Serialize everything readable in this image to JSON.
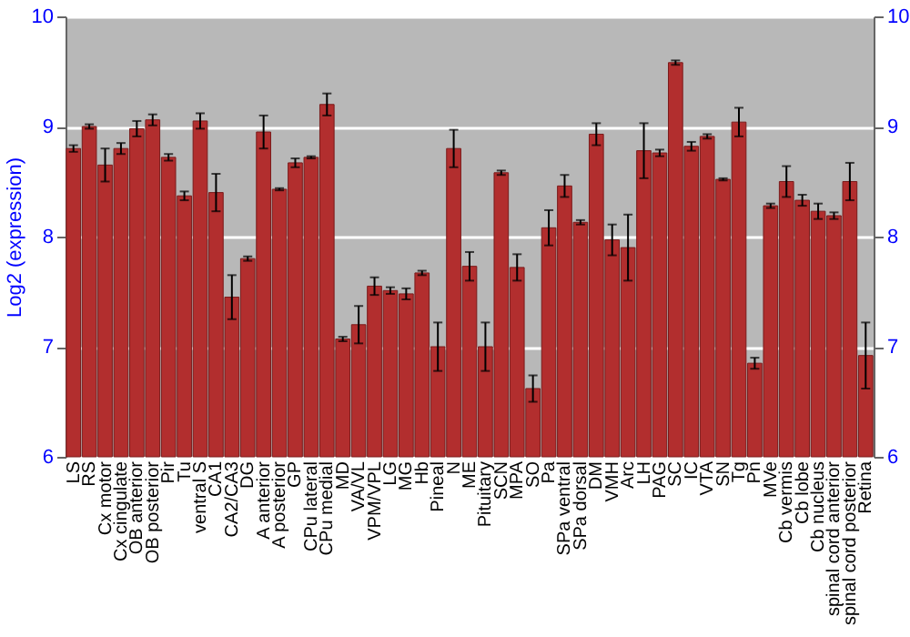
{
  "chart_data": {
    "type": "bar",
    "ylabel": "Log2 (expression)",
    "categories": [
      "LS",
      "RS",
      "Cx motor",
      "Cx cingulate",
      "OB anterior",
      "OB posterior",
      "Pir",
      "Tu",
      "ventral S",
      "CA1",
      "CA2/CA3",
      "DG",
      "A anterior",
      "A posterior",
      "GP",
      "CPu lateral",
      "CPu medial",
      "MD",
      "VA/VL",
      "VPM/VPL",
      "LG",
      "MG",
      "Hb",
      "Pineal",
      "N",
      "ME",
      "Pituitary",
      "SCN",
      "MPA",
      "SO",
      "Pa",
      "SPa ventral",
      "SPa dorsal",
      "DM",
      "VMH",
      "Arc",
      "LH",
      "PAG",
      "SC",
      "IC",
      "VTA",
      "SN",
      "Tg",
      "Pn",
      "MVe",
      "Cb vermis",
      "Cb lobe",
      "Cb nucleus",
      "spinal cord anterior",
      "spinal cord posterior",
      "Retina"
    ],
    "series": [
      {
        "color": "#b22e2e",
        "values": [
          8.8,
          9.0,
          8.65,
          8.8,
          8.98,
          9.06,
          8.72,
          8.37,
          9.05,
          8.4,
          7.45,
          7.8,
          8.95,
          8.43,
          8.67,
          8.72,
          9.2,
          7.07,
          7.2,
          7.55,
          7.51,
          7.48,
          7.67,
          7.0,
          8.8,
          7.73,
          7.0,
          8.58,
          7.72,
          6.62,
          8.08,
          8.46,
          8.13,
          8.93,
          7.97,
          7.9,
          8.78,
          8.76,
          9.58,
          8.82,
          8.91,
          8.52,
          9.04,
          6.85,
          8.28,
          8.5,
          8.33,
          8.23,
          8.19,
          8.5,
          6.92
        ],
        "errors": [
          0.03,
          0.02,
          0.15,
          0.05,
          0.07,
          0.05,
          0.03,
          0.04,
          0.07,
          0.17,
          0.2,
          0.02,
          0.15,
          0.01,
          0.04,
          0.01,
          0.1,
          0.02,
          0.17,
          0.08,
          0.03,
          0.05,
          0.02,
          0.22,
          0.17,
          0.13,
          0.22,
          0.02,
          0.12,
          0.12,
          0.16,
          0.1,
          0.02,
          0.1,
          0.14,
          0.3,
          0.25,
          0.03,
          0.02,
          0.04,
          0.02,
          0.01,
          0.13,
          0.05,
          0.02,
          0.14,
          0.05,
          0.07,
          0.03,
          0.17,
          0.3
        ]
      }
    ],
    "ylim": [
      6,
      10
    ],
    "yticks": [
      6,
      7,
      8,
      9,
      10
    ],
    "y2lim": [
      6,
      10
    ],
    "y2ticks": [
      6,
      7,
      8,
      9,
      10
    ],
    "grid": "y"
  }
}
